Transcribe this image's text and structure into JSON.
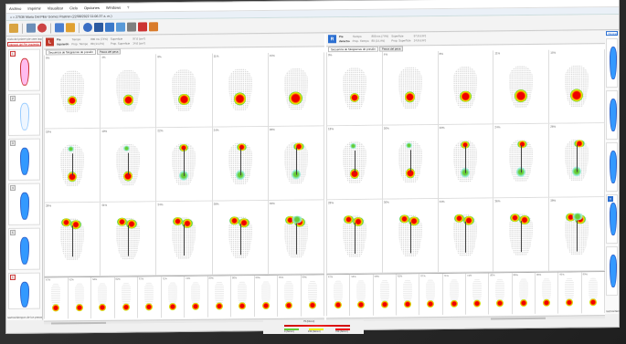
{
  "menu": [
    "Archivo",
    "Imprimir",
    "Visualizar",
    "Ciclo",
    "Opciones",
    "Windows",
    "?"
  ],
  "window_title": "« » 27536 Maria Del Pilar Gomez Pastran (22/08/2022 11:06:37 a. m.)",
  "left_panel": {
    "title": "Ciclo del primer pie cara izquierda",
    "selector": "Integral del Pie izquierdo",
    "thumbs": [
      "1",
      "2",
      "3",
      "4",
      "5",
      "6",
      "7"
    ],
    "footer": "rastros/tiempos de los pasos"
  },
  "right_panel": {
    "selector": "Integral del Pie derecho",
    "footer": "rastros/tiempos"
  },
  "left_header": {
    "badge": "L",
    "side": [
      "Pie",
      "izquierdo"
    ],
    "tiempo": [
      "Tiempo",
      "Prop. Tiempo"
    ],
    "tiempo_val": [
      "800 ms  (74%)",
      "80 (14,4%)"
    ],
    "superficie": [
      "Superficie",
      "Prop. Superficie"
    ],
    "superficie_val": [
      "97,6 (cm²)",
      "14,6 (cm²)"
    ]
  },
  "right_header": {
    "badge": "R",
    "side": [
      "Pie",
      "derecho"
    ],
    "tiempo": [
      "Tiempo",
      "Prop. Tiempo"
    ],
    "tiempo_val": [
      "800 ms  (74%)",
      "80 (14,4%)"
    ],
    "superficie": [
      "Superficie",
      "Prop. Superficie"
    ],
    "superficie_val": [
      "97,6 (cm²)",
      "14,6 (cm²)"
    ]
  },
  "tabs": [
    "Secuencia de fotogramas de presión",
    "Pasos del pasa"
  ],
  "left_grid_pcts": [
    "0%",
    "4%",
    "8%",
    "11%",
    "15%",
    "18%",
    "19%",
    "22%",
    "24%",
    "26%",
    "28%",
    "31%",
    "34%",
    "38%",
    "40%"
  ],
  "right_grid_pcts": [
    "0%",
    "4%",
    "8%",
    "11%",
    "15%",
    "18%",
    "20%",
    "22%",
    "24%",
    "26%",
    "28%",
    "30%",
    "34%",
    "36%",
    "38%"
  ],
  "left_strip_pcts": [
    "47%",
    "52%",
    "58%",
    "62%",
    "67%",
    "71%",
    "74%",
    "80%",
    "86%",
    "90%",
    "95%",
    "99%"
  ],
  "right_strip_pcts": [
    "47%",
    "52%",
    "58%",
    "62%",
    "67%",
    "71%",
    "74%",
    "80%",
    "86%",
    "90%",
    "95%",
    "99%"
  ],
  "legend": {
    "top": "75 (N/cm²)",
    "mid_left": "0 (N/cm²)",
    "mid": "150 (N/cm²)",
    "right": "700 (N/cm²)"
  },
  "colors": {
    "accent_left": "#c0392b",
    "accent_right": "#2b6fd1",
    "pressure_high": "#e00000",
    "pressure_low": "#66cc33"
  }
}
